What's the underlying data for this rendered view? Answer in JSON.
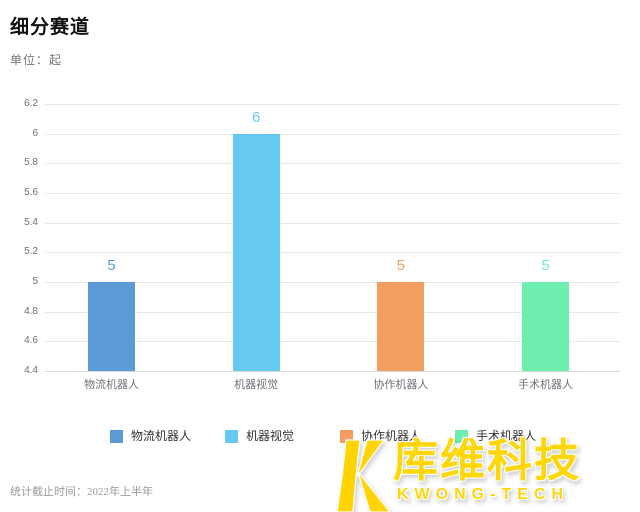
{
  "header": {
    "title": "细分赛道",
    "unit_label": "单位：起"
  },
  "chart_data": {
    "type": "bar",
    "title": "细分赛道",
    "categories": [
      "物流机器人",
      "机器视觉",
      "协作机器人",
      "手术机器人"
    ],
    "values": [
      5,
      6,
      5,
      5
    ],
    "colors": [
      "#5b9bd5",
      "#67c8f0",
      "#f29e60",
      "#6deeae"
    ],
    "xlabel": "",
    "ylabel": "单位：起",
    "ylim": [
      4.4,
      6.2
    ],
    "ytick_step": 0.2,
    "yticks": [
      4.4,
      4.6,
      4.8,
      5,
      5.2,
      5.4,
      5.6,
      5.8,
      6,
      6.2
    ],
    "grid": true,
    "legend_position": "bottom",
    "legend": [
      "物流机器人",
      "机器视觉",
      "协作机器人",
      "手术机器人"
    ]
  },
  "footer": {
    "note": "统计截止时间：2022年上半年"
  },
  "logo": {
    "name_cn": "库维科技",
    "name_en": "KWONG-TECH",
    "brand_color": "#ffd60a"
  }
}
